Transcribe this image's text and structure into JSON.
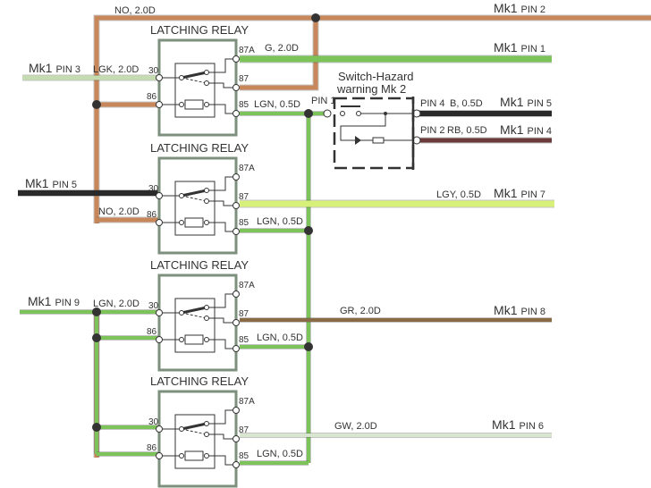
{
  "colors": {
    "brown": "#c8875a",
    "green": "#7cc35a",
    "light_green": "#c5dcb0",
    "black": "#2a2a2a",
    "maroon": "#6b3a3a",
    "lime": "#d7f07a",
    "olive_brown": "#8a6a45",
    "gray_white": "#d9e6cf",
    "relay_border": "#7d8f7d",
    "junction": "#333333"
  },
  "relays": [
    {
      "title": "LATCHING RELAY",
      "t87a": "87A",
      "t30": "30",
      "t87": "87",
      "t86": "86",
      "t85": "85"
    },
    {
      "title": "LATCHING RELAY",
      "t87a": "87A",
      "t30": "30",
      "t87": "87",
      "t86": "86",
      "t85": "85"
    },
    {
      "title": "LATCHING RELAY",
      "t87a": "87A",
      "t30": "30",
      "t87": "87",
      "t86": "86",
      "t85": "85"
    },
    {
      "title": "LATCHING RELAY",
      "t87a": "87A",
      "t30": "30",
      "t87": "87",
      "t86": "86",
      "t85": "85"
    }
  ],
  "wires": {
    "no_top": "NO, 2.0D",
    "g": "G, 2.0D",
    "lgk": "LGK, 2.0D",
    "lgn1": "LGN, 0.5D",
    "pin1": "PIN 1",
    "no_r2": "NO, 2.0D",
    "lgn2": "LGN, 0.5D",
    "lgy": "LGY, 0.5D",
    "lgn_r3_in": "LGN, 2.0D",
    "gr": "GR, 2.0D",
    "lgn3": "LGN, 0.5D",
    "gw": "GW, 2.0D",
    "lgn4": "LGN, 0.5D",
    "pin4": "PIN 4",
    "b": "B, 0.5D",
    "pin2": "PIN 2",
    "rb": "RB, 0.5D"
  },
  "switch": {
    "line1": "Switch-Hazard",
    "line2": "warning",
    "mk": "Mk 2"
  },
  "connectors": [
    {
      "mk": "Mk1",
      "pin": "PIN 2"
    },
    {
      "mk": "Mk1",
      "pin": "PIN 1"
    },
    {
      "mk": "Mk1",
      "pin": "PIN 3"
    },
    {
      "mk": "Mk1",
      "pin": "PIN 5"
    },
    {
      "mk": "Mk1",
      "pin": "PIN 4"
    },
    {
      "mk": "Mk1",
      "pin": "PIN 5"
    },
    {
      "mk": "Mk1",
      "pin": "PIN 7"
    },
    {
      "mk": "Mk1",
      "pin": "PIN 9"
    },
    {
      "mk": "Mk1",
      "pin": "PIN 8"
    },
    {
      "mk": "Mk1",
      "pin": "PIN 6"
    }
  ]
}
